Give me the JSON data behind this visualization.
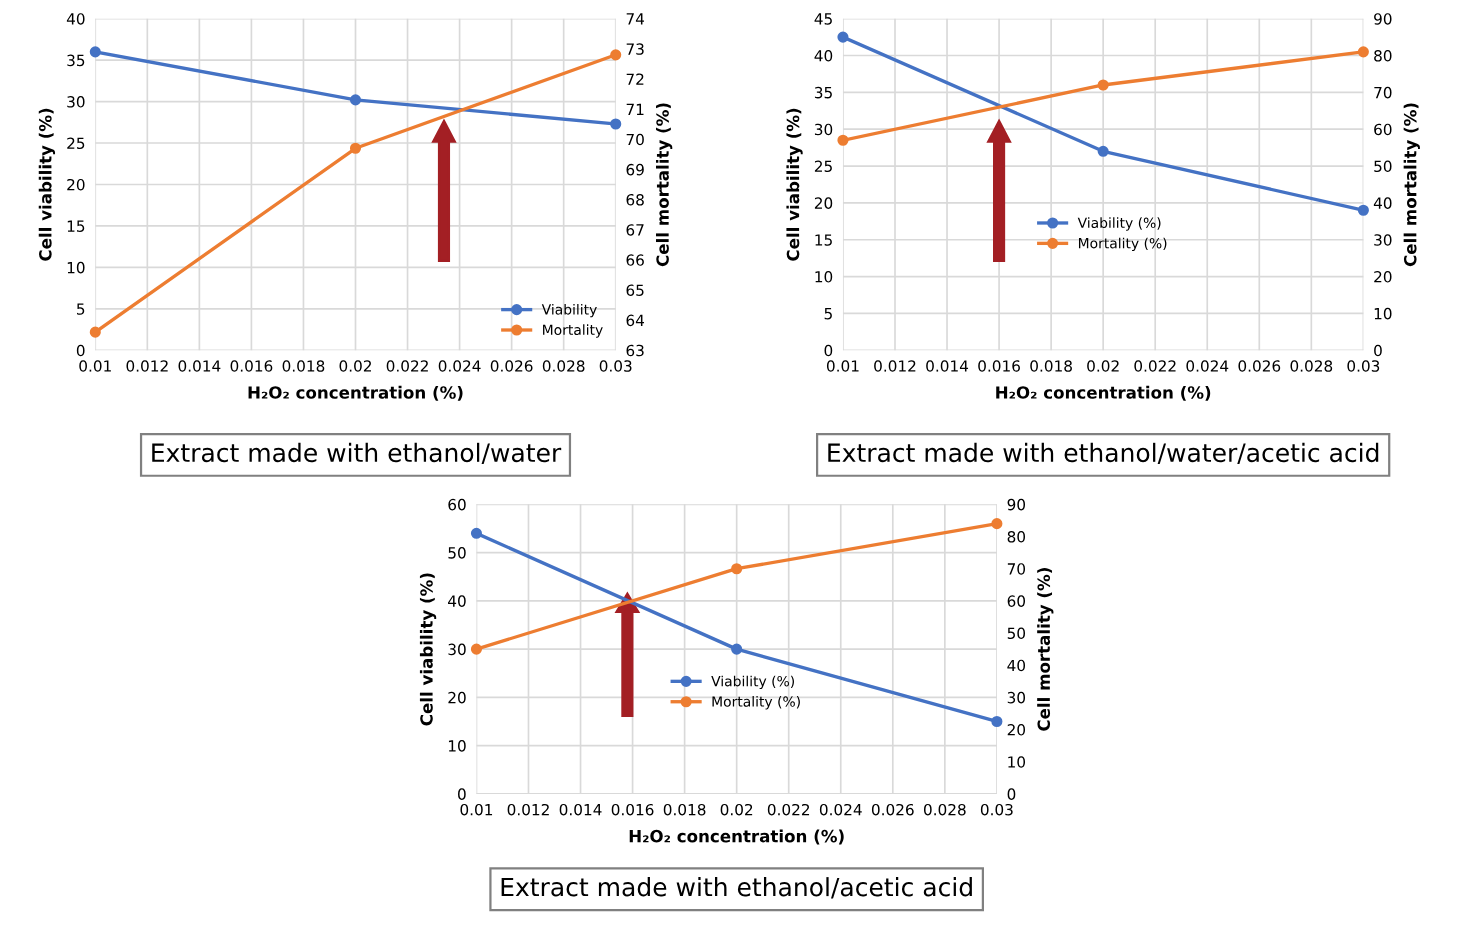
{
  "chart_data": [
    {
      "type": "line",
      "title": "Extract made with ethanol/water",
      "xlabel": "H₂O₂ concentration (%)",
      "ylabel": "Cell viability (%)",
      "y2label": "Cell mortality (%)",
      "x": [
        0.01,
        0.02,
        0.03
      ],
      "series": [
        {
          "name": "Viability",
          "color": "#4472c4",
          "values": [
            36,
            30.2,
            27.3
          ]
        },
        {
          "name": "Mortality",
          "color": "#ed7d31",
          "values": [
            63.6,
            69.7,
            72.8
          ],
          "axis": "y2"
        }
      ],
      "xlim": [
        0.01,
        0.03
      ],
      "xticks": [
        0.01,
        0.012,
        0.014,
        0.016,
        0.018,
        0.02,
        0.022,
        0.024,
        0.026,
        0.028,
        0.03
      ],
      "ylim": [
        0,
        40
      ],
      "yticks": [
        0,
        5,
        10,
        15,
        20,
        25,
        30,
        35,
        40
      ],
      "y2lim": [
        63,
        74
      ],
      "y2ticks": [
        63,
        64,
        65,
        66,
        67,
        68,
        69,
        70,
        71,
        72,
        73,
        74
      ],
      "grid": true,
      "legend": "bottom right",
      "marker": "circle"
    },
    {
      "type": "line",
      "title": "Extract made with ethanol/water/acetic acid",
      "xlabel": "H₂O₂ concentration (%)",
      "ylabel": "Cell viability (%)",
      "y2label": "Cell mortality (%)",
      "x": [
        0.01,
        0.02,
        0.03
      ],
      "series": [
        {
          "name": "Viability (%)",
          "color": "#4472c4",
          "values": [
            42.5,
            27,
            19
          ]
        },
        {
          "name": "Mortality (%)",
          "color": "#ed7d31",
          "values": [
            57,
            72,
            81
          ],
          "axis": "y2"
        }
      ],
      "xlim": [
        0.01,
        0.03
      ],
      "xticks": [
        0.01,
        0.012,
        0.014,
        0.016,
        0.018,
        0.02,
        0.022,
        0.024,
        0.026,
        0.028,
        0.03
      ],
      "ylim": [
        0,
        45
      ],
      "yticks": [
        0,
        5,
        10,
        15,
        20,
        25,
        30,
        35,
        40,
        45
      ],
      "y2lim": [
        0,
        90
      ],
      "y2ticks": [
        0,
        10,
        20,
        30,
        40,
        50,
        60,
        70,
        80,
        90
      ],
      "grid": true,
      "legend": "center",
      "marker": "circle"
    },
    {
      "type": "line",
      "title": "Extract made with ethanol/acetic acid",
      "xlabel": "H₂O₂ concentration (%)",
      "ylabel": "Cell viability (%)",
      "y2label": "Cell mortality (%)",
      "x": [
        0.01,
        0.02,
        0.03
      ],
      "series": [
        {
          "name": "Viability (%)",
          "color": "#4472c4",
          "values": [
            54,
            30,
            15
          ]
        },
        {
          "name": "Mortality (%)",
          "color": "#ed7d31",
          "values": [
            45,
            70,
            84
          ],
          "axis": "y2"
        }
      ],
      "xlim": [
        0.01,
        0.03
      ],
      "xticks": [
        0.01,
        0.012,
        0.014,
        0.016,
        0.018,
        0.02,
        0.022,
        0.024,
        0.026,
        0.028,
        0.03
      ],
      "ylim": [
        0,
        60
      ],
      "yticks": [
        0,
        10,
        20,
        30,
        40,
        50,
        60
      ],
      "y2lim": [
        0,
        90
      ],
      "y2ticks": [
        0,
        10,
        20,
        30,
        40,
        50,
        60,
        70,
        80,
        90
      ],
      "grid": true,
      "legend": "center",
      "marker": "circle"
    }
  ]
}
